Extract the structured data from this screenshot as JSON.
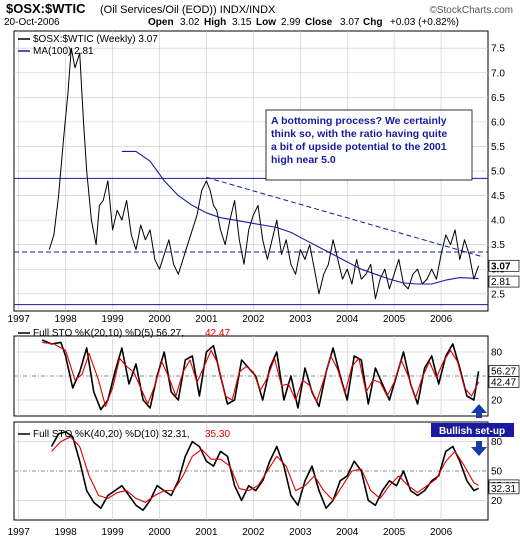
{
  "header": {
    "symbol": "$OSX:$WTIC",
    "description": "(Oil Services/Oil (EOD)) INDX/INDX",
    "date": "20-Oct-2006",
    "open_label": "Open",
    "open": "3.02",
    "high_label": "High",
    "high": "3.15",
    "low_label": "Low",
    "low": "2.99",
    "close_label": "Close",
    "close": "3.07",
    "chg_label": "Chg",
    "chg": "+0.03 (+0.82%)",
    "brand": "©StockCharts.com"
  },
  "annotation": "A bottoming process? We certainly think so, with the ratio having quite a bit of upside potential to the 2001 high near 5.0",
  "callout": "Bullish set-up",
  "colors": {
    "price": "#000000",
    "ma": "#1a1aa0",
    "d_line": "#e00000",
    "level_lines": "#1a1aa0",
    "annotation_text": "#1a1aa0",
    "callout_bg": "#1a1aa0",
    "arrow": "#1a3aa8",
    "grid": "#c8c8c8",
    "axis_text": "#000000"
  },
  "chart_data": [
    {
      "type": "line",
      "panel": "price",
      "legend": [
        {
          "label": "$OSX:$WTIC (Weekly) 3.07"
        },
        {
          "label": "MA(100) 2.81"
        }
      ],
      "ylim": [
        2.15,
        7.85
      ],
      "y_ticks": [
        "2.5",
        "3.0",
        "3.5",
        "4.0",
        "4.5",
        "5.0",
        "5.5",
        "6.0",
        "6.5",
        "7.0",
        "7.5"
      ],
      "last_value_labels": [
        "3.07",
        "2.81"
      ],
      "x_ticks": [
        "1997",
        "1998",
        "1999",
        "2000",
        "2001",
        "2002",
        "2003",
        "2004",
        "2005",
        "2006"
      ],
      "grid": true,
      "series": [
        {
          "role": "price",
          "x": [
            1997.65,
            1997.75,
            1997.85,
            1997.95,
            1998.05,
            1998.12,
            1998.2,
            1998.3,
            1998.38,
            1998.45,
            1998.55,
            1998.65,
            1998.72,
            1998.8,
            1998.9,
            1999.0,
            1999.1,
            1999.2,
            1999.3,
            1999.4,
            1999.5,
            1999.6,
            1999.7,
            1999.8,
            1999.9,
            2000.0,
            2000.1,
            2000.2,
            2000.3,
            2000.4,
            2000.5,
            2000.6,
            2000.7,
            2000.8,
            2000.9,
            2001.0,
            2001.08,
            2001.15,
            2001.22,
            2001.3,
            2001.4,
            2001.5,
            2001.6,
            2001.7,
            2001.8,
            2001.9,
            2002.0,
            2002.1,
            2002.2,
            2002.3,
            2002.4,
            2002.5,
            2002.6,
            2002.7,
            2002.8,
            2002.9,
            2003.0,
            2003.1,
            2003.2,
            2003.3,
            2003.4,
            2003.5,
            2003.6,
            2003.7,
            2003.8,
            2003.9,
            2004.0,
            2004.1,
            2004.2,
            2004.3,
            2004.4,
            2004.5,
            2004.6,
            2004.7,
            2004.8,
            2004.9,
            2005.0,
            2005.1,
            2005.2,
            2005.3,
            2005.4,
            2005.5,
            2005.6,
            2005.7,
            2005.8,
            2005.9,
            2006.0,
            2006.1,
            2006.2,
            2006.3,
            2006.4,
            2006.5,
            2006.6,
            2006.7,
            2006.8
          ],
          "values": [
            3.4,
            3.7,
            4.5,
            5.6,
            6.6,
            7.5,
            7.1,
            7.4,
            6.0,
            5.0,
            4.0,
            3.5,
            4.3,
            4.4,
            4.8,
            3.8,
            4.2,
            4.0,
            4.4,
            3.7,
            3.4,
            3.9,
            3.6,
            3.8,
            3.2,
            3.0,
            3.3,
            3.6,
            3.1,
            2.9,
            3.2,
            3.5,
            3.8,
            4.1,
            4.6,
            4.8,
            4.6,
            4.3,
            4.2,
            3.8,
            3.5,
            4.0,
            4.4,
            3.6,
            3.1,
            3.8,
            4.1,
            4.3,
            3.6,
            3.2,
            3.6,
            4.0,
            3.3,
            3.6,
            3.1,
            2.9,
            3.4,
            3.2,
            3.5,
            3.0,
            2.5,
            2.9,
            3.1,
            3.6,
            3.2,
            2.8,
            3.0,
            2.7,
            3.2,
            2.8,
            2.9,
            3.1,
            2.4,
            2.8,
            3.0,
            2.6,
            2.9,
            3.2,
            2.7,
            2.6,
            2.9,
            3.0,
            2.7,
            2.8,
            3.0,
            2.8,
            3.3,
            3.7,
            3.5,
            3.8,
            3.2,
            3.6,
            3.3,
            2.8,
            3.07
          ]
        },
        {
          "role": "ma100",
          "x": [
            1999.2,
            1999.5,
            1999.8,
            2000.1,
            2000.4,
            2000.7,
            2001.0,
            2001.3,
            2001.6,
            2001.9,
            2002.2,
            2002.5,
            2002.8,
            2003.1,
            2003.4,
            2003.7,
            2004.0,
            2004.3,
            2004.6,
            2004.9,
            2005.2,
            2005.5,
            2005.8,
            2006.1,
            2006.4,
            2006.8
          ],
          "values": [
            5.4,
            5.4,
            5.2,
            4.8,
            4.5,
            4.3,
            4.15,
            4.05,
            4.0,
            3.95,
            3.9,
            3.85,
            3.75,
            3.6,
            3.45,
            3.3,
            3.15,
            3.0,
            2.9,
            2.8,
            2.72,
            2.7,
            2.7,
            2.78,
            2.83,
            2.81
          ]
        }
      ],
      "reference_lines": [
        {
          "style": "solid",
          "y": 4.85
        },
        {
          "style": "dashed",
          "y": 3.35
        },
        {
          "style": "solid",
          "y": 2.28
        },
        {
          "style": "dashed-trend",
          "x": [
            2001.0,
            2006.9
          ],
          "y": [
            4.87,
            3.25
          ]
        }
      ]
    },
    {
      "type": "line",
      "panel": "sto_20_10",
      "legend": [
        {
          "label": "Full STO %K(20,10) %D(5) 56.27,"
        },
        {
          "label": "42.47"
        }
      ],
      "ylim": [
        0,
        100
      ],
      "y_ticks": [
        "20",
        "50",
        "80"
      ],
      "last_value_labels": [
        "56.27",
        "42.47"
      ],
      "series": [
        {
          "role": "k",
          "x": [
            1997.5,
            1997.7,
            1997.9,
            1998.0,
            1998.15,
            1998.3,
            1998.45,
            1998.6,
            1998.75,
            1998.9,
            1999.05,
            1999.2,
            1999.35,
            1999.5,
            1999.65,
            1999.8,
            1999.95,
            2000.1,
            2000.25,
            2000.4,
            2000.55,
            2000.7,
            2000.85,
            2001.0,
            2001.15,
            2001.3,
            2001.45,
            2001.6,
            2001.75,
            2001.9,
            2002.05,
            2002.2,
            2002.35,
            2002.5,
            2002.65,
            2002.8,
            2002.95,
            2003.1,
            2003.25,
            2003.4,
            2003.55,
            2003.7,
            2003.85,
            2004.0,
            2004.15,
            2004.3,
            2004.45,
            2004.6,
            2004.75,
            2004.9,
            2005.05,
            2005.2,
            2005.35,
            2005.5,
            2005.65,
            2005.8,
            2005.95,
            2006.1,
            2006.25,
            2006.4,
            2006.55,
            2006.7,
            2006.8
          ],
          "values": [
            95,
            90,
            92,
            75,
            35,
            55,
            85,
            30,
            8,
            20,
            55,
            85,
            40,
            65,
            20,
            10,
            50,
            80,
            30,
            20,
            70,
            75,
            25,
            80,
            88,
            50,
            15,
            20,
            70,
            60,
            50,
            20,
            60,
            80,
            20,
            50,
            10,
            60,
            30,
            12,
            55,
            85,
            50,
            20,
            75,
            70,
            15,
            60,
            40,
            20,
            50,
            80,
            40,
            15,
            60,
            75,
            40,
            75,
            90,
            60,
            25,
            20,
            56
          ]
        },
        {
          "role": "d",
          "x": [
            1997.5,
            1997.75,
            1998.0,
            1998.2,
            1998.35,
            1998.5,
            1998.7,
            1998.85,
            1999.0,
            1999.15,
            1999.3,
            1999.45,
            1999.6,
            1999.75,
            1999.9,
            2000.05,
            2000.2,
            2000.35,
            2000.5,
            2000.65,
            2000.8,
            2000.95,
            2001.1,
            2001.25,
            2001.4,
            2001.55,
            2001.7,
            2001.85,
            2002.0,
            2002.15,
            2002.3,
            2002.45,
            2002.6,
            2002.75,
            2002.9,
            2003.05,
            2003.2,
            2003.35,
            2003.5,
            2003.65,
            2003.8,
            2003.95,
            2004.1,
            2004.25,
            2004.4,
            2004.55,
            2004.7,
            2004.85,
            2005.0,
            2005.15,
            2005.3,
            2005.45,
            2005.6,
            2005.75,
            2005.9,
            2006.05,
            2006.2,
            2006.35,
            2006.5,
            2006.65,
            2006.8
          ],
          "values": [
            92,
            90,
            82,
            45,
            52,
            78,
            45,
            12,
            35,
            72,
            62,
            55,
            35,
            15,
            38,
            68,
            48,
            25,
            55,
            70,
            42,
            62,
            82,
            65,
            25,
            20,
            55,
            62,
            55,
            32,
            48,
            72,
            38,
            40,
            20,
            45,
            38,
            18,
            45,
            75,
            58,
            28,
            62,
            72,
            30,
            45,
            42,
            25,
            42,
            70,
            50,
            22,
            48,
            68,
            48,
            68,
            82,
            68,
            35,
            25,
            42.47
          ]
        }
      ]
    },
    {
      "type": "line",
      "panel": "sto_40_20",
      "legend": [
        {
          "label": "Full STO %K(40,20) %D(10) 32.31,"
        },
        {
          "label": "35.30"
        }
      ],
      "ylim": [
        0,
        100
      ],
      "y_ticks": [
        "20",
        "50",
        "80"
      ],
      "last_value_labels": [
        "35.30",
        "32.31"
      ],
      "x_ticks": [
        "1997",
        "1998",
        "1999",
        "2000",
        "2001",
        "2002",
        "2003",
        "2004",
        "2005",
        "2006"
      ],
      "series": [
        {
          "role": "k",
          "x": [
            1997.7,
            1997.85,
            1998.0,
            1998.15,
            1998.3,
            1998.45,
            1998.6,
            1998.75,
            1998.9,
            1999.05,
            1999.2,
            1999.35,
            1999.5,
            1999.65,
            1999.8,
            1999.95,
            2000.1,
            2000.25,
            2000.4,
            2000.55,
            2000.7,
            2000.85,
            2001.0,
            2001.15,
            2001.3,
            2001.45,
            2001.6,
            2001.75,
            2001.9,
            2002.05,
            2002.2,
            2002.35,
            2002.5,
            2002.65,
            2002.8,
            2002.95,
            2003.1,
            2003.25,
            2003.4,
            2003.55,
            2003.7,
            2003.85,
            2004.0,
            2004.15,
            2004.3,
            2004.45,
            2004.6,
            2004.75,
            2004.9,
            2005.05,
            2005.2,
            2005.35,
            2005.5,
            2005.65,
            2005.8,
            2005.95,
            2006.1,
            2006.25,
            2006.4,
            2006.55,
            2006.7,
            2006.8
          ],
          "values": [
            75,
            88,
            90,
            85,
            60,
            30,
            18,
            12,
            25,
            30,
            35,
            25,
            15,
            10,
            20,
            35,
            30,
            25,
            40,
            65,
            80,
            75,
            60,
            55,
            70,
            65,
            35,
            20,
            35,
            30,
            40,
            60,
            75,
            55,
            25,
            15,
            40,
            55,
            30,
            12,
            20,
            40,
            45,
            60,
            50,
            20,
            15,
            30,
            40,
            35,
            50,
            30,
            25,
            30,
            40,
            45,
            70,
            75,
            60,
            40,
            30,
            32.31
          ]
        },
        {
          "role": "d",
          "x": [
            1997.7,
            1997.9,
            1998.1,
            1998.3,
            1998.5,
            1998.7,
            1998.9,
            1999.1,
            1999.3,
            1999.5,
            1999.7,
            1999.9,
            2000.1,
            2000.3,
            2000.5,
            2000.7,
            2000.9,
            2001.1,
            2001.3,
            2001.5,
            2001.7,
            2001.9,
            2002.1,
            2002.3,
            2002.5,
            2002.7,
            2002.9,
            2003.1,
            2003.3,
            2003.5,
            2003.7,
            2003.9,
            2004.1,
            2004.3,
            2004.5,
            2004.7,
            2004.9,
            2005.1,
            2005.3,
            2005.5,
            2005.7,
            2005.9,
            2006.1,
            2006.3,
            2006.5,
            2006.7,
            2006.8
          ],
          "values": [
            70,
            80,
            85,
            75,
            45,
            25,
            22,
            28,
            30,
            22,
            18,
            25,
            30,
            30,
            45,
            65,
            72,
            62,
            62,
            55,
            32,
            30,
            35,
            50,
            65,
            55,
            30,
            35,
            45,
            30,
            20,
            35,
            50,
            52,
            30,
            22,
            35,
            45,
            35,
            28,
            35,
            42,
            60,
            70,
            55,
            38,
            35.3
          ]
        }
      ]
    }
  ]
}
